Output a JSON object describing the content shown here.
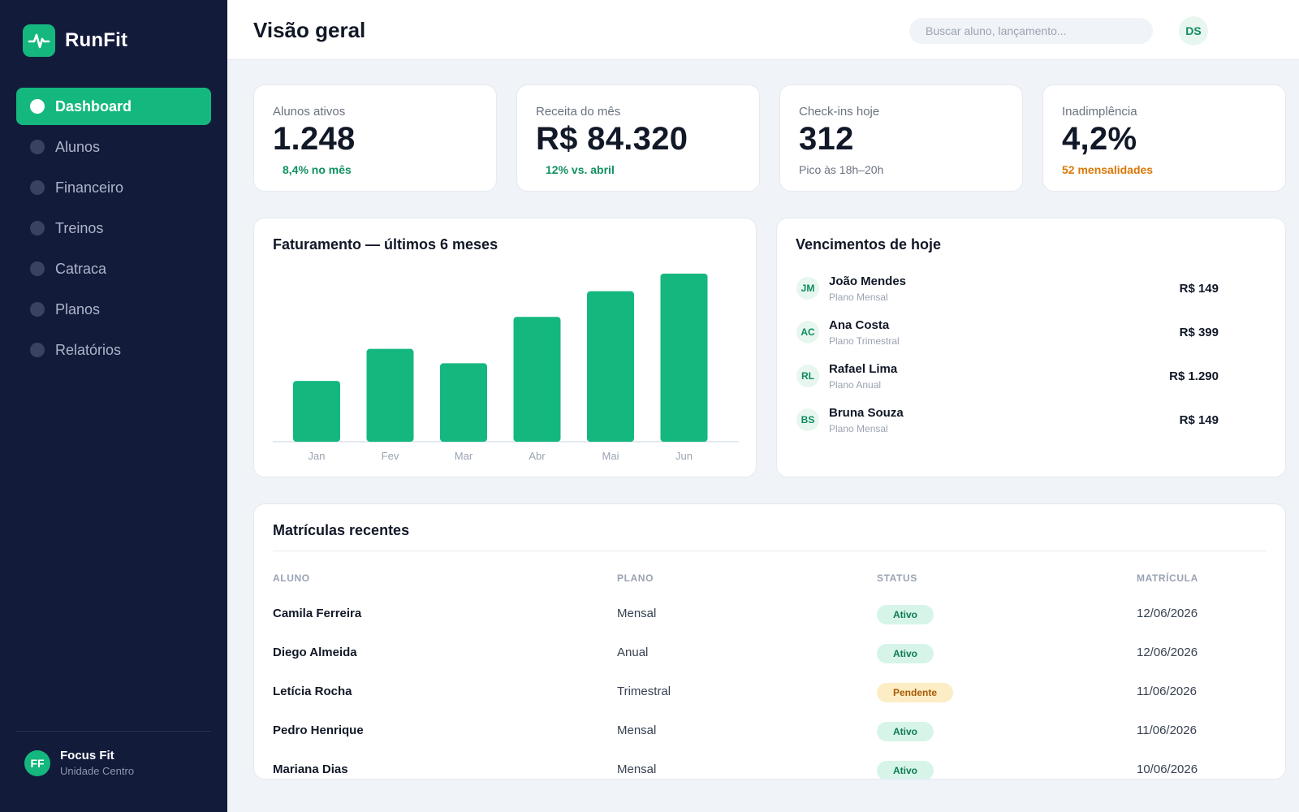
{
  "app": {
    "name": "RunFit",
    "logo_icon": "pulse-icon",
    "accent": "#14b87e"
  },
  "sidebar": {
    "items": [
      {
        "label": "Dashboard",
        "active": true
      },
      {
        "label": "Alunos",
        "active": false
      },
      {
        "label": "Financeiro",
        "active": false
      },
      {
        "label": "Treinos",
        "active": false
      },
      {
        "label": "Catraca",
        "active": false
      },
      {
        "label": "Planos",
        "active": false
      },
      {
        "label": "Relatórios",
        "active": false
      }
    ],
    "unit": {
      "initials": "FF",
      "name": "Focus Fit",
      "subtitle": "Unidade Centro"
    }
  },
  "header": {
    "title": "Visão geral",
    "search_placeholder": "Buscar aluno, lançamento...",
    "user_initials": "DS"
  },
  "kpis": [
    {
      "label": "Alunos ativos",
      "value": "1.248",
      "sub": "8,4% no mês",
      "tone": "up"
    },
    {
      "label": "Receita do mês",
      "value": "R$ 84.320",
      "sub": "12% vs. abril",
      "tone": "up"
    },
    {
      "label": "Check-ins hoje",
      "value": "312",
      "sub": "Pico às 18h–20h",
      "tone": "neutral"
    },
    {
      "label": "Inadimplência",
      "value": "4,2%",
      "sub": "52 mensalidades",
      "tone": "warn"
    }
  ],
  "chart": {
    "title": "Faturamento — últimos 6 meses"
  },
  "chart_data": {
    "type": "bar",
    "title": "Faturamento — últimos 6 meses",
    "categories": [
      "Jan",
      "Fev",
      "Mar",
      "Abr",
      "Mai",
      "Jun"
    ],
    "values": [
      38,
      58,
      49,
      78,
      94,
      105
    ],
    "ylim": [
      0,
      105
    ],
    "grid": false,
    "bar_color": "#14b87e"
  },
  "due_today": {
    "title": "Vencimentos de hoje",
    "items": [
      {
        "initials": "JM",
        "name": "João Mendes",
        "plan": "Plano Mensal",
        "amount": "R$ 149"
      },
      {
        "initials": "AC",
        "name": "Ana Costa",
        "plan": "Plano Trimestral",
        "amount": "R$ 399"
      },
      {
        "initials": "RL",
        "name": "Rafael Lima",
        "plan": "Plano Anual",
        "amount": "R$ 1.290"
      },
      {
        "initials": "BS",
        "name": "Bruna Souza",
        "plan": "Plano Mensal",
        "amount": "R$ 149"
      }
    ]
  },
  "enrollments": {
    "title": "Matrículas recentes",
    "columns": [
      "ALUNO",
      "PLANO",
      "STATUS",
      "MATRÍCULA"
    ],
    "rows": [
      {
        "student": "Camila Ferreira",
        "plan": "Mensal",
        "status": "Ativo",
        "status_tone": "ativo",
        "date": "12/06/2026"
      },
      {
        "student": "Diego Almeida",
        "plan": "Anual",
        "status": "Ativo",
        "status_tone": "ativo",
        "date": "12/06/2026"
      },
      {
        "student": "Letícia Rocha",
        "plan": "Trimestral",
        "status": "Pendente",
        "status_tone": "pendente",
        "date": "11/06/2026"
      },
      {
        "student": "Pedro Henrique",
        "plan": "Mensal",
        "status": "Ativo",
        "status_tone": "ativo",
        "date": "11/06/2026"
      },
      {
        "student": "Mariana Dias",
        "plan": "Mensal",
        "status": "Ativo",
        "status_tone": "ativo",
        "date": "10/06/2026"
      }
    ]
  }
}
